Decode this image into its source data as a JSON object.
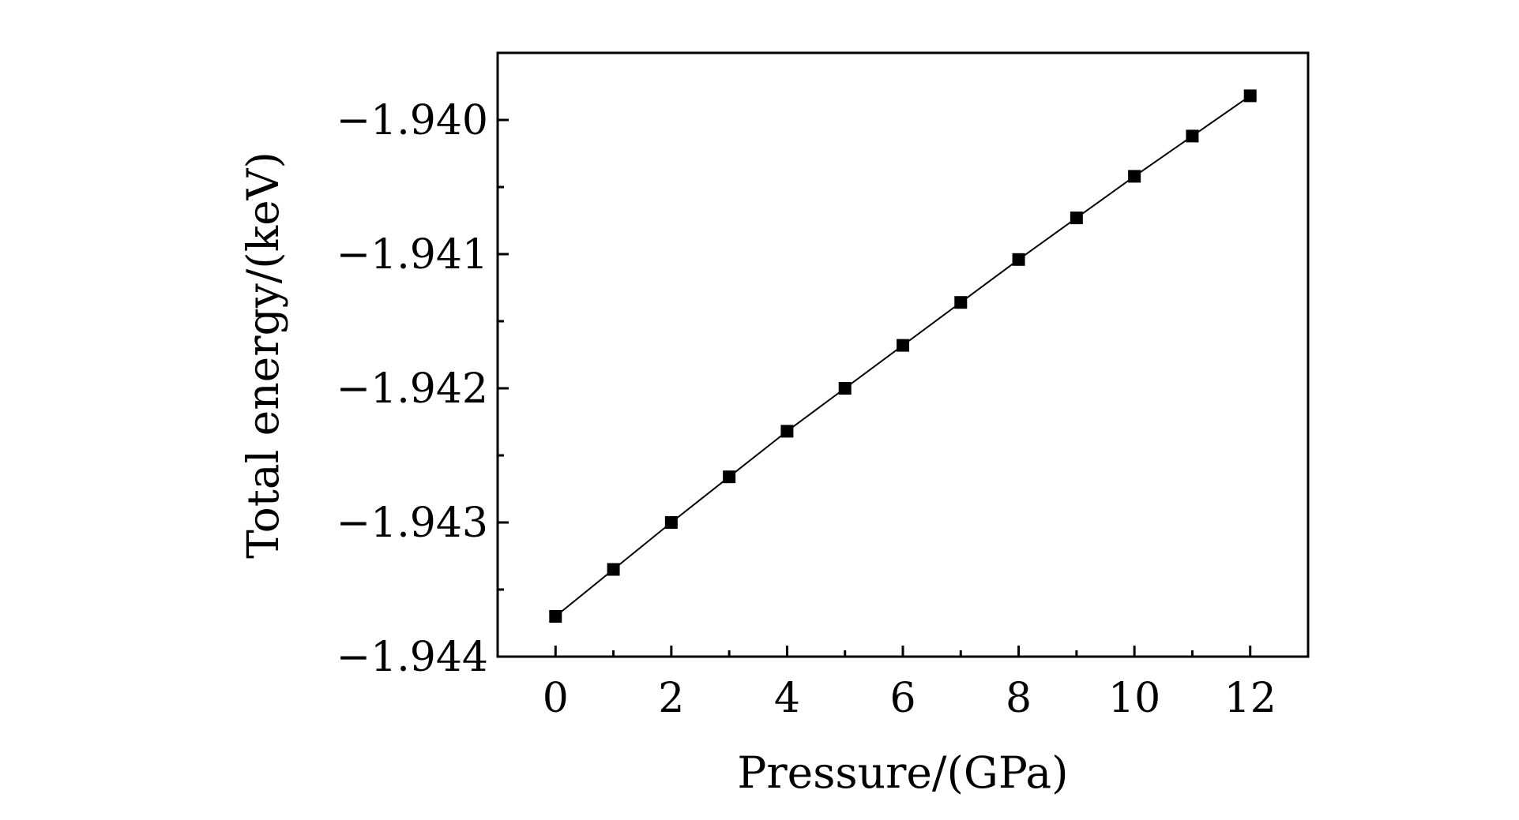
{
  "chart_data": {
    "type": "line",
    "title": "",
    "xlabel": "Pressure/(GPa)",
    "ylabel": "Total energy/(keV)",
    "xlim": [
      -1,
      13
    ],
    "ylim": [
      -1.944,
      -1.9395
    ],
    "x_ticks": [
      0,
      2,
      4,
      6,
      8,
      10,
      12
    ],
    "x_tick_labels": [
      "0",
      "2",
      "4",
      "6",
      "8",
      "10",
      "12"
    ],
    "x_minor_ticks": [
      1,
      3,
      5,
      7,
      9,
      11
    ],
    "y_ticks": [
      -1.944,
      -1.943,
      -1.942,
      -1.941,
      -1.94
    ],
    "y_tick_labels": [
      "−1.944",
      "−1.943",
      "−1.942",
      "−1.941",
      "−1.940"
    ],
    "y_minor_ticks": [
      -1.9435,
      -1.9425,
      -1.9415,
      -1.9405
    ],
    "grid": false,
    "marker": "square",
    "colors": {
      "line": "#000000",
      "marker": "#000000",
      "axes": "#000000"
    },
    "series": [
      {
        "x": [
          0,
          1,
          2,
          3,
          4,
          5,
          6,
          7,
          8,
          9,
          10,
          11,
          12
        ],
        "values": [
          -1.9437,
          -1.94335,
          -1.943,
          -1.94266,
          -1.94232,
          -1.942,
          -1.94168,
          -1.94136,
          -1.94104,
          -1.94073,
          -1.94042,
          -1.94012,
          -1.93982
        ]
      }
    ]
  }
}
